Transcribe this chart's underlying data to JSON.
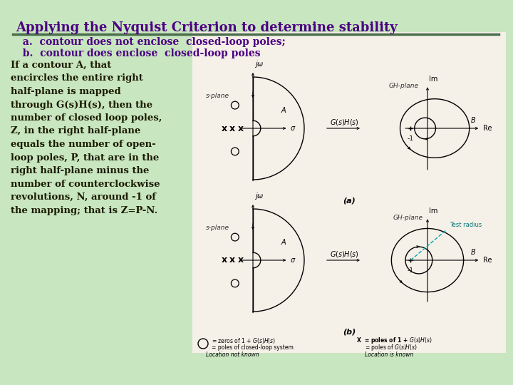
{
  "title": "Applying the Nyquist Criterion to determine stability",
  "subtitle_a": "  a.  contour does not enclose  closed-loop poles;",
  "subtitle_b": "  b.  contour does enclose  closed-loop poles",
  "body_text": "If a contour A, that\nencircles the entire right\nhalf-plane is mapped\nthrough G(s)H(s), then the\nnumber of closed loop poles,\nZ, in the right half-plane\nequals the number of open-\nloop poles, P, that are in the\nright half-plane minus the\nnumber of counterclockwise\nrevolutions, N, around -1 of\nthe mapping; that is Z=P-N.",
  "bg_color": "#c8e6c0",
  "white_box_color": "#f5f0e8",
  "title_color": "#4B0082",
  "subtitle_color": "#4B0082",
  "body_color": "#1a1a00",
  "divider_color": "#4a6e4a",
  "title_fontsize": 13,
  "subtitle_fontsize": 10,
  "body_fontsize": 9.5
}
